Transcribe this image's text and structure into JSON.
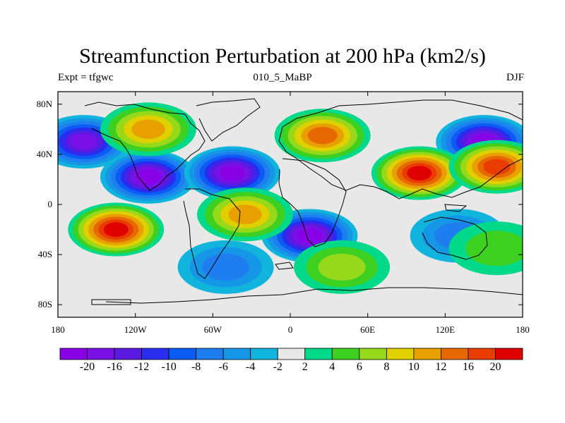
{
  "chart_data": {
    "type": "heatmap",
    "title": "Streamfunction Perturbation at 200 hPa (km2/s)",
    "subtitle_left": "Expt = tfgwc",
    "subtitle_center": "010_5_MaBP",
    "subtitle_right": "DJF",
    "x_ticks": [
      "180",
      "120W",
      "60W",
      "0",
      "60E",
      "120E",
      "180"
    ],
    "x_tick_values": [
      -180,
      -120,
      -60,
      0,
      60,
      120,
      180
    ],
    "y_ticks": [
      "80N",
      "40N",
      "0",
      "40S",
      "80S"
    ],
    "y_tick_values": [
      80,
      40,
      0,
      -40,
      -80
    ],
    "xlim": [
      -180,
      180
    ],
    "ylim": [
      -90,
      90
    ],
    "colorbar": {
      "labels": [
        "-20",
        "-16",
        "-12",
        "-10",
        "-8",
        "-6",
        "-4",
        "-2",
        "2",
        "4",
        "6",
        "8",
        "10",
        "12",
        "16",
        "20"
      ],
      "levels": [
        -20,
        -16,
        -12,
        -10,
        -8,
        -6,
        -4,
        -2,
        2,
        4,
        6,
        8,
        10,
        12,
        16,
        20
      ],
      "colors": [
        "#8a00e6",
        "#7a10e8",
        "#5a1ae0",
        "#2a2cf0",
        "#0a5cf5",
        "#1e7ef0",
        "#1696e6",
        "#10b4dc",
        "#e8e8e8",
        "#00d88a",
        "#3ed020",
        "#96d81a",
        "#e0d000",
        "#e8a000",
        "#e86800",
        "#e83c00",
        "#e00000"
      ]
    },
    "features": [
      {
        "name": "negative center N Pacific",
        "lon": -160,
        "lat": 50,
        "value": -16
      },
      {
        "name": "negative center N Pacific subtropics",
        "lon": -110,
        "lat": 22,
        "value": -20
      },
      {
        "name": "negative center Atlantic",
        "lon": -45,
        "lat": 25,
        "value": -20
      },
      {
        "name": "negative center S Africa",
        "lon": 15,
        "lat": -25,
        "value": -20
      },
      {
        "name": "negative center NE Asia",
        "lon": 150,
        "lat": 50,
        "value": -20
      },
      {
        "name": "positive center NE Pacific",
        "lon": -110,
        "lat": 60,
        "value": 10
      },
      {
        "name": "positive center S Pacific",
        "lon": -135,
        "lat": -20,
        "value": 20
      },
      {
        "name": "positive center Asia",
        "lon": 100,
        "lat": 25,
        "value": 20
      },
      {
        "name": "positive center Europe",
        "lon": 25,
        "lat": 55,
        "value": 12
      },
      {
        "name": "positive center S Atlantic",
        "lon": -35,
        "lat": -8,
        "value": 10
      },
      {
        "name": "positive center W Pacific",
        "lon": 160,
        "lat": 30,
        "value": 16
      },
      {
        "name": "negative center Australia",
        "lon": 130,
        "lat": -25,
        "value": -6
      },
      {
        "name": "negative center S Ocean",
        "lon": -50,
        "lat": -50,
        "value": -6
      },
      {
        "name": "positive center Indian Ocean",
        "lon": 40,
        "lat": -50,
        "value": 6
      },
      {
        "name": "positive center SE Pacific",
        "lon": 160,
        "lat": -35,
        "value": 4
      }
    ]
  }
}
